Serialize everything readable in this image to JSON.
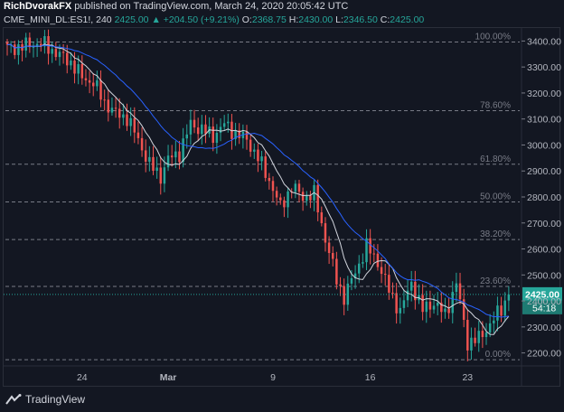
{
  "header": {
    "author": "RichDvorakFX",
    "published_text": "published on TradingView.com, March 24, 2020 20:05:42 UTC"
  },
  "legend": {
    "symbol": "CME_MINI_DL:ES1!, 240",
    "last": "2425.00",
    "arrow": "▲",
    "change": "+204.50 (+9.21%)",
    "o_label": "O:",
    "o_val": "2368.75",
    "h_label": "H:",
    "h_val": "2430.00",
    "l_label": "L:",
    "l_val": "2346.50",
    "c_label": "C:",
    "c_val": "2425.00"
  },
  "footer": {
    "brand": "TradingView"
  },
  "colors": {
    "up": "#26a69a",
    "down": "#ef5350",
    "ma_fast": "#d1d4dc",
    "ma_slow": "#2962ff",
    "fib": "#787b86",
    "price_line": "#26a69a",
    "background": "#131722"
  },
  "chart_data": {
    "type": "candlestick",
    "title": "",
    "ylim": [
      2150,
      3450
    ],
    "yticks": [
      2200,
      2300,
      2400,
      2500,
      2600,
      2700,
      2800,
      2900,
      3000,
      3100,
      3200,
      3300,
      3400
    ],
    "xlim": [
      0,
      135
    ],
    "xticks": [
      {
        "label": "24",
        "bar": 20
      },
      {
        "label": "Mar",
        "bar": 43
      },
      {
        "label": "9",
        "bar": 71
      },
      {
        "label": "16",
        "bar": 97
      },
      {
        "label": "23",
        "bar": 123
      }
    ],
    "last_price_label": "2425.00",
    "countdown_label": "54:18",
    "last_price": 2425,
    "fib_levels": [
      {
        "label": "100.00%",
        "price": 3396
      },
      {
        "label": "78.60%",
        "price": 3132
      },
      {
        "label": "61.80%",
        "price": 2926
      },
      {
        "label": "50.00%",
        "price": 2781
      },
      {
        "label": "38.20%",
        "price": 2636
      },
      {
        "label": "23.60%",
        "price": 2456
      },
      {
        "label": "0.00%",
        "price": 2174
      }
    ],
    "close_anchors": [
      [
        0,
        3372
      ],
      [
        4,
        3378
      ],
      [
        7,
        3390
      ],
      [
        10,
        3385
      ],
      [
        14,
        3345
      ],
      [
        17,
        3318
      ],
      [
        20,
        3260
      ],
      [
        23,
        3240
      ],
      [
        26,
        3165
      ],
      [
        29,
        3120
      ],
      [
        32,
        3105
      ],
      [
        35,
        3020
      ],
      [
        38,
        2925
      ],
      [
        41,
        2880
      ],
      [
        43,
        2945
      ],
      [
        46,
        2970
      ],
      [
        49,
        3080
      ],
      [
        52,
        3060
      ],
      [
        55,
        3035
      ],
      [
        58,
        3080
      ],
      [
        61,
        3045
      ],
      [
        64,
        3020
      ],
      [
        67,
        2950
      ],
      [
        70,
        2865
      ],
      [
        73,
        2760
      ],
      [
        76,
        2840
      ],
      [
        79,
        2800
      ],
      [
        82,
        2810
      ],
      [
        85,
        2640
      ],
      [
        88,
        2480
      ],
      [
        90,
        2415
      ],
      [
        93,
        2510
      ],
      [
        96,
        2610
      ],
      [
        99,
        2550
      ],
      [
        102,
        2440
      ],
      [
        105,
        2360
      ],
      [
        108,
        2470
      ],
      [
        111,
        2365
      ],
      [
        114,
        2395
      ],
      [
        117,
        2345
      ],
      [
        120,
        2470
      ],
      [
        123,
        2240
      ],
      [
        126,
        2255
      ],
      [
        129,
        2310
      ],
      [
        132,
        2370
      ],
      [
        134,
        2425
      ]
    ],
    "ma_fast_period": 8,
    "ma_slow_period": 20
  }
}
